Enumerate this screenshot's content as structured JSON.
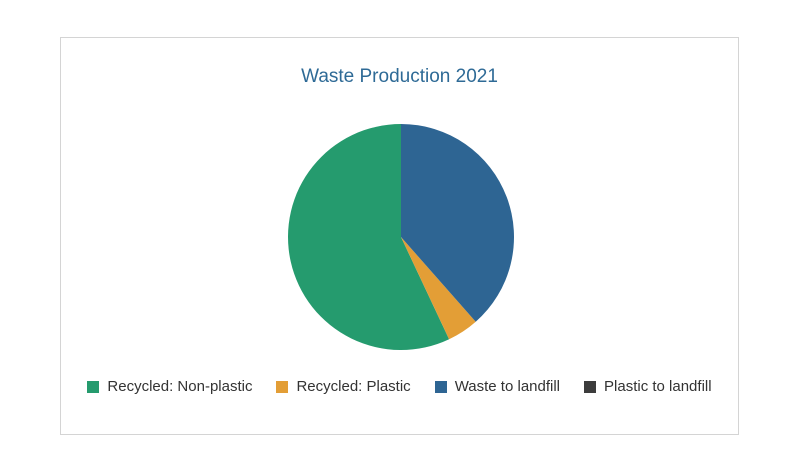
{
  "chart_data": {
    "type": "pie",
    "title": "Waste Production 2021",
    "legend_position": "bottom",
    "series": [
      {
        "name": "Recycled: Non-plastic",
        "value": 57.0,
        "color": "#259b6e"
      },
      {
        "name": "Recycled: Plastic",
        "value": 4.5,
        "color": "#e39e36"
      },
      {
        "name": "Waste to landfill",
        "value": 38.5,
        "color": "#2e6593"
      },
      {
        "name": "Plastic to landfill",
        "value": 0,
        "color": "#3c3c3c"
      }
    ]
  }
}
